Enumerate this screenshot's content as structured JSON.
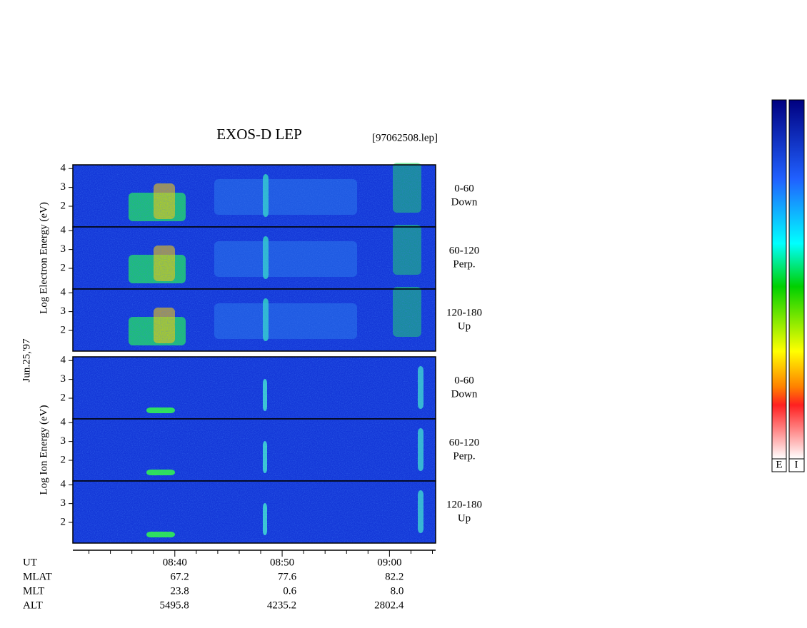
{
  "chart_data": {
    "type": "spectrogram",
    "title": "EXOS-D LEP",
    "file_label": "[97062508.lep]",
    "date_label": "Jun.25,'97",
    "panel_groups": [
      {
        "ylabel": "Log Electron Energy (eV)",
        "panels": [
          {
            "angle": "0-60",
            "direction": "Down"
          },
          {
            "angle": "60-120",
            "direction": "Perp."
          },
          {
            "angle": "120-180",
            "direction": "Up"
          }
        ]
      },
      {
        "ylabel": "Log Ion Energy (eV)",
        "panels": [
          {
            "angle": "0-60",
            "direction": "Down"
          },
          {
            "angle": "60-120",
            "direction": "Perp."
          },
          {
            "angle": "120-180",
            "direction": "Up"
          }
        ]
      }
    ],
    "ylim": [
      0.9,
      4.2
    ],
    "yticks": [
      2,
      3,
      4
    ],
    "xlim": [
      30.5,
      64.3
    ],
    "xticks": [
      {
        "value": 40,
        "label": "08:40"
      },
      {
        "value": 50,
        "label": "08:50"
      },
      {
        "value": 60,
        "label": "09:00"
      }
    ],
    "xminorticks": [
      32,
      34,
      36,
      38,
      42,
      44,
      46,
      48,
      52,
      54,
      56,
      58,
      62,
      64
    ],
    "x_label": "UT",
    "orbit_table": {
      "rows": [
        {
          "label": "MLAT",
          "values": [
            "67.2",
            "77.6",
            "82.2"
          ]
        },
        {
          "label": "MLT",
          "values": [
            "23.8",
            "0.6",
            "8.0"
          ]
        },
        {
          "label": "ALT",
          "values": [
            "5495.8",
            "4235.2",
            "2802.4"
          ]
        }
      ]
    },
    "colorbar_labels": [
      "E",
      "I"
    ]
  }
}
